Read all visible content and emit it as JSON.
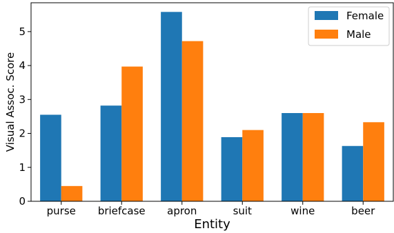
{
  "chart_data": {
    "type": "bar",
    "title": "",
    "xlabel": "Entity",
    "ylabel": "Visual Assoc. Score",
    "categories": [
      "purse",
      "briefcase",
      "apron",
      "suit",
      "wine",
      "beer"
    ],
    "series": [
      {
        "name": "Female",
        "color": "#1f77b4",
        "values": [
          2.55,
          2.82,
          5.58,
          1.89,
          2.6,
          1.63
        ]
      },
      {
        "name": "Male",
        "color": "#ff7f0e",
        "values": [
          0.45,
          3.97,
          4.72,
          2.1,
          2.6,
          2.33
        ]
      }
    ],
    "ylim": [
      0,
      5.85
    ],
    "yticks": [
      "0",
      "1",
      "2",
      "3",
      "4",
      "5"
    ],
    "grid": false,
    "legend_position": "top-right"
  }
}
